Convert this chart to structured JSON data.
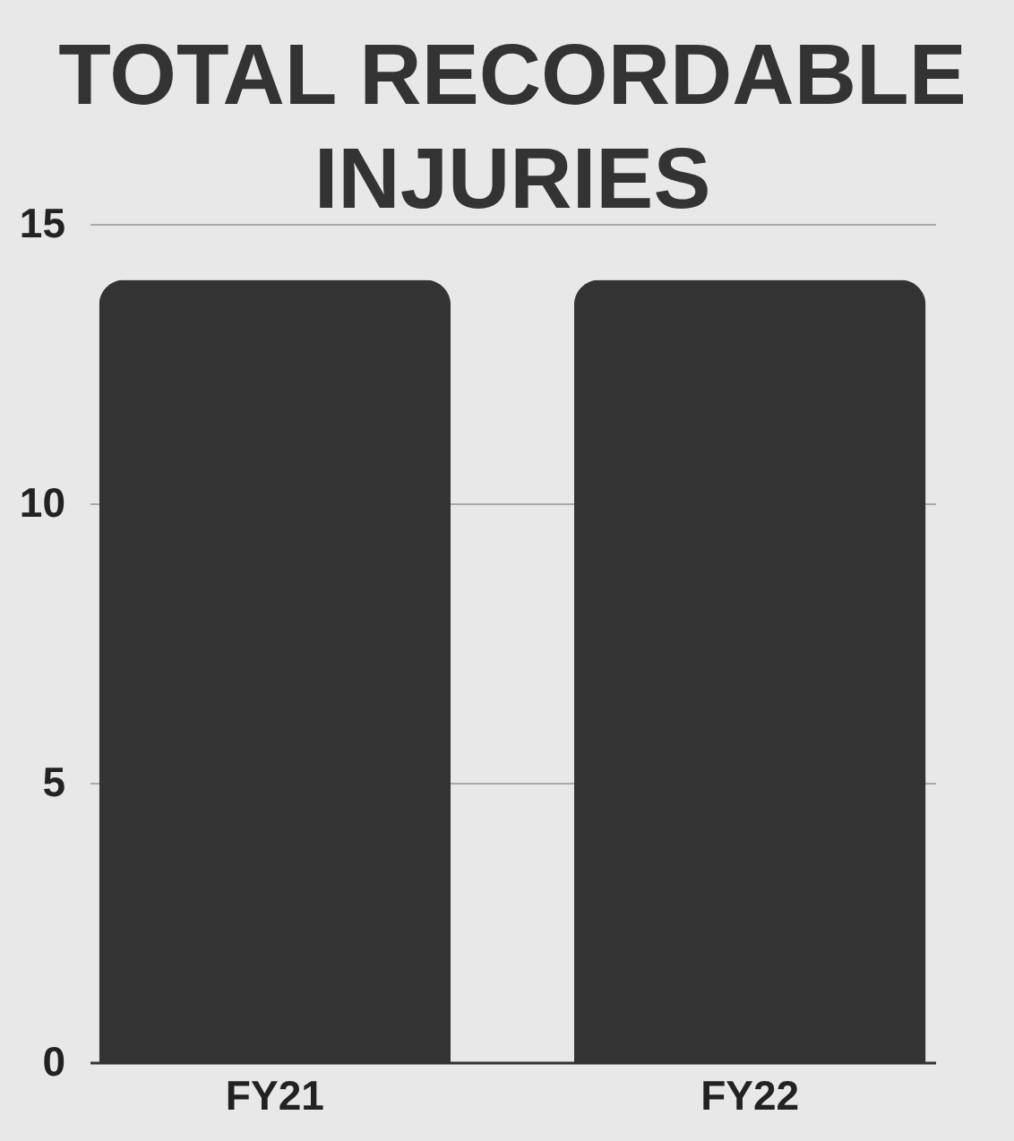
{
  "chart_data": {
    "type": "bar",
    "title": "TOTAL RECORDABLE\nINJURIES",
    "categories": [
      "FY21",
      "FY22"
    ],
    "values": [
      14,
      14
    ],
    "color": "#333333",
    "ylim": [
      0,
      15
    ],
    "yticks": [
      0,
      5,
      10,
      15
    ],
    "grid": "y"
  }
}
